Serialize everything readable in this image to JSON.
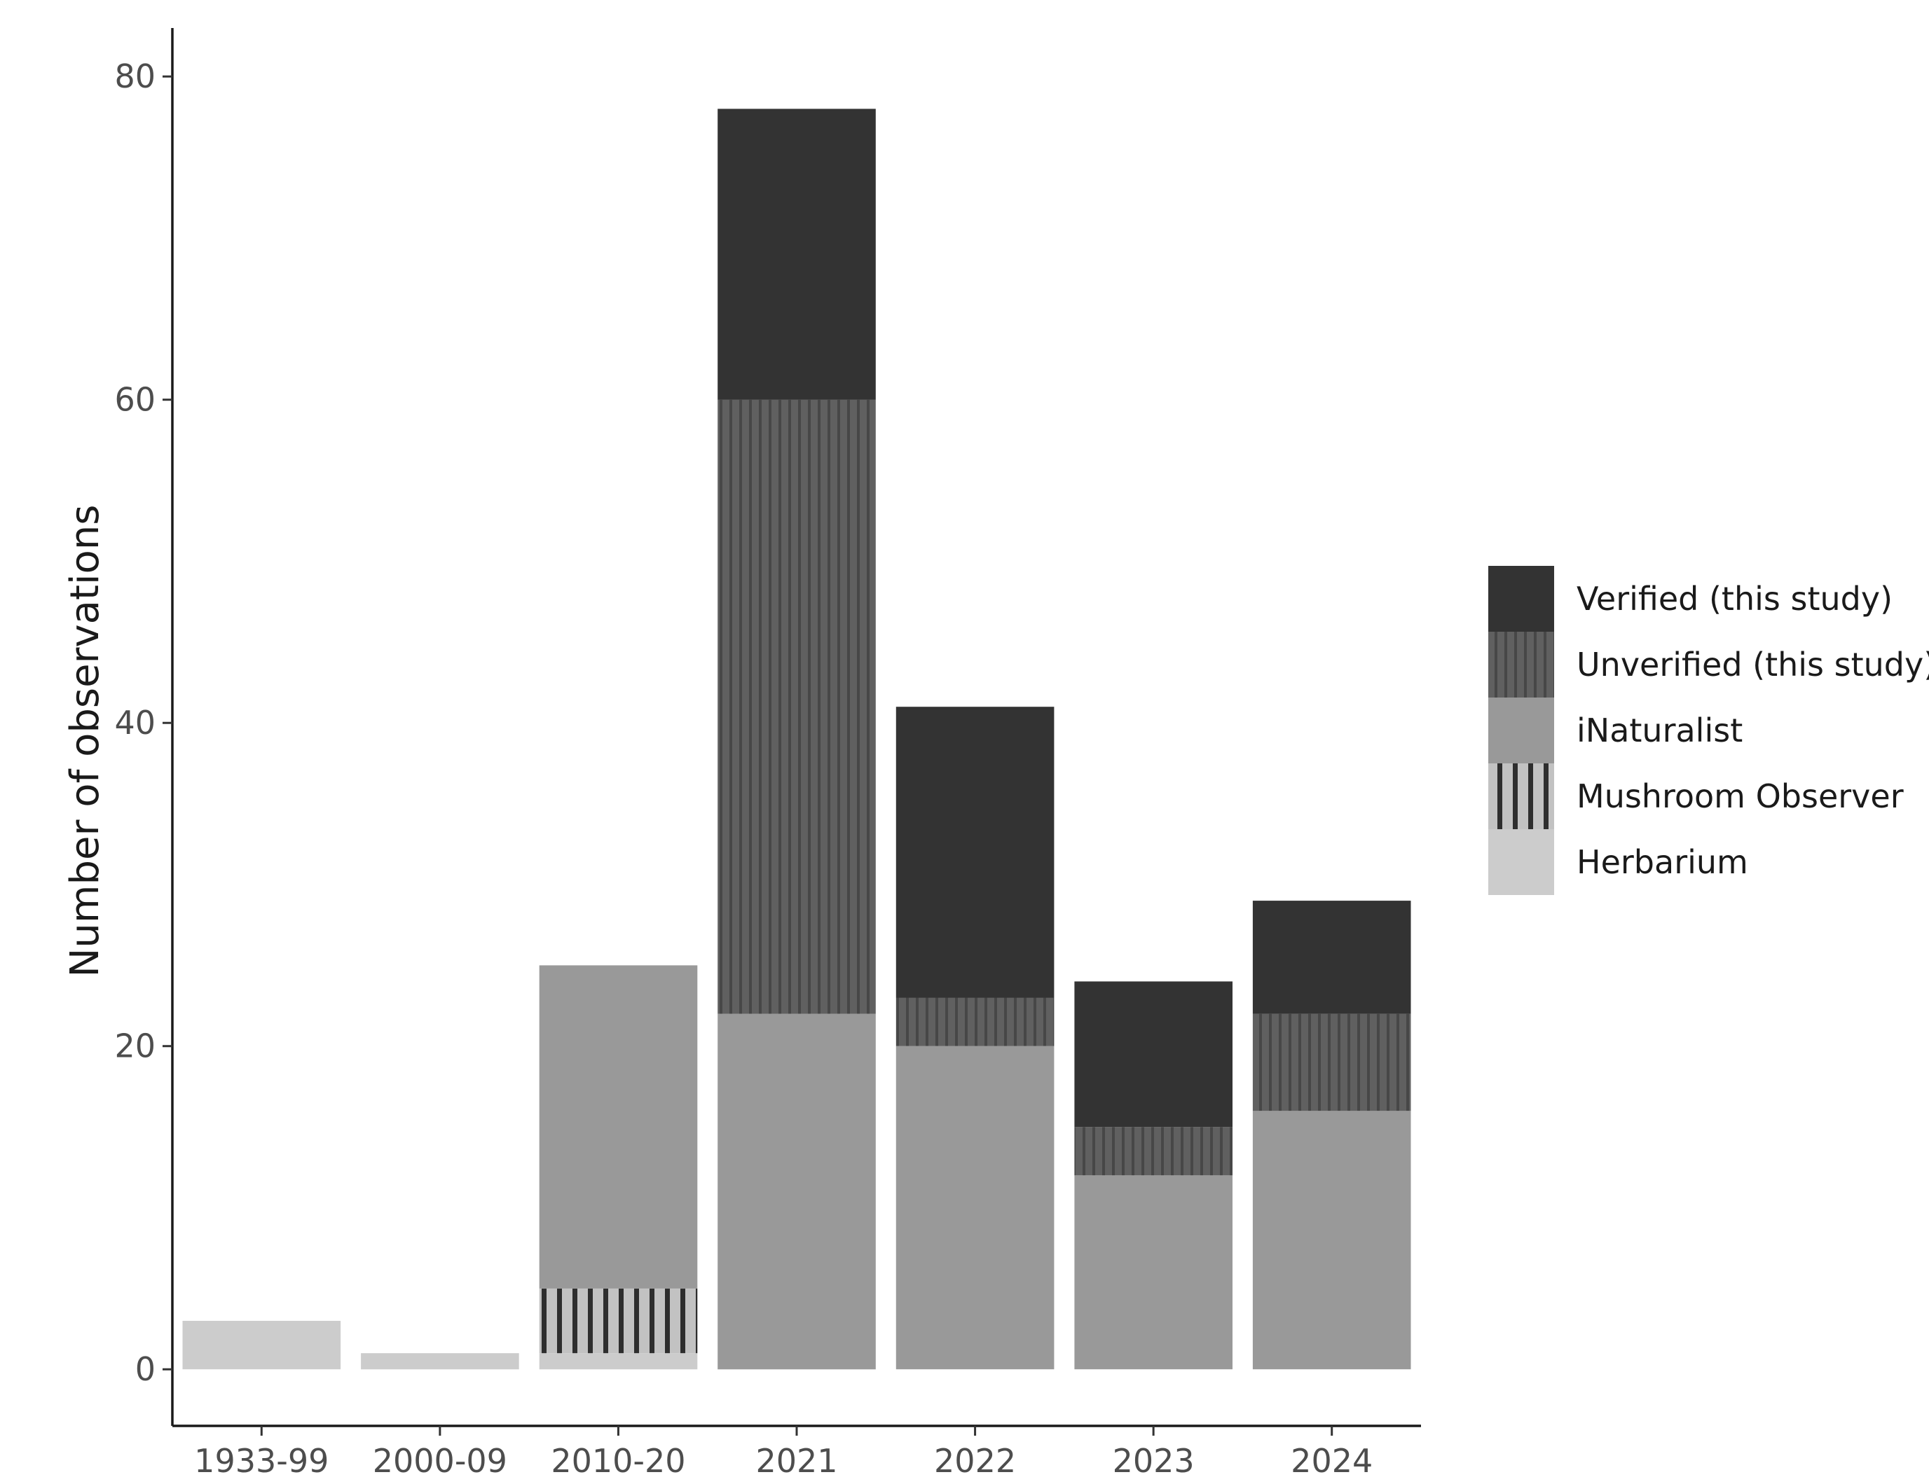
{
  "chart_data": {
    "type": "bar",
    "stacked": true,
    "ylabel": "Number of observations",
    "xlabel": "",
    "ylim": [
      -3.5,
      83
    ],
    "yticks": [
      0,
      20,
      40,
      60,
      80
    ],
    "categories": [
      "1933-99",
      "2000-09",
      "2010-20",
      "2021",
      "2022",
      "2023",
      "2024"
    ],
    "series": [
      {
        "name": "Herbarium",
        "values": [
          3,
          1,
          1,
          0,
          0,
          0,
          0
        ],
        "color": "#cccccc",
        "pattern": "none"
      },
      {
        "name": "Mushroom Observer",
        "values": [
          0,
          0,
          4,
          0,
          0,
          0,
          0
        ],
        "color": "#c2c2c2",
        "pattern": "vertical-stripes-coarse"
      },
      {
        "name": "iNaturalist",
        "values": [
          0,
          0,
          20,
          22,
          20,
          12,
          16
        ],
        "color": "#999999",
        "pattern": "none"
      },
      {
        "name": "Unverified (this study)",
        "values": [
          0,
          0,
          0,
          38,
          3,
          3,
          6
        ],
        "color": "#5a5a5a",
        "pattern": "vertical-stripes-fine"
      },
      {
        "name": "Verified (this study)",
        "values": [
          0,
          0,
          0,
          18,
          18,
          9,
          7
        ],
        "color": "#333333",
        "pattern": "none"
      }
    ],
    "legend": {
      "placement": "right",
      "order": [
        "Verified (this study)",
        "Unverified (this study)",
        "iNaturalist",
        "Mushroom Observer",
        "Herbarium"
      ]
    },
    "grid": false
  }
}
